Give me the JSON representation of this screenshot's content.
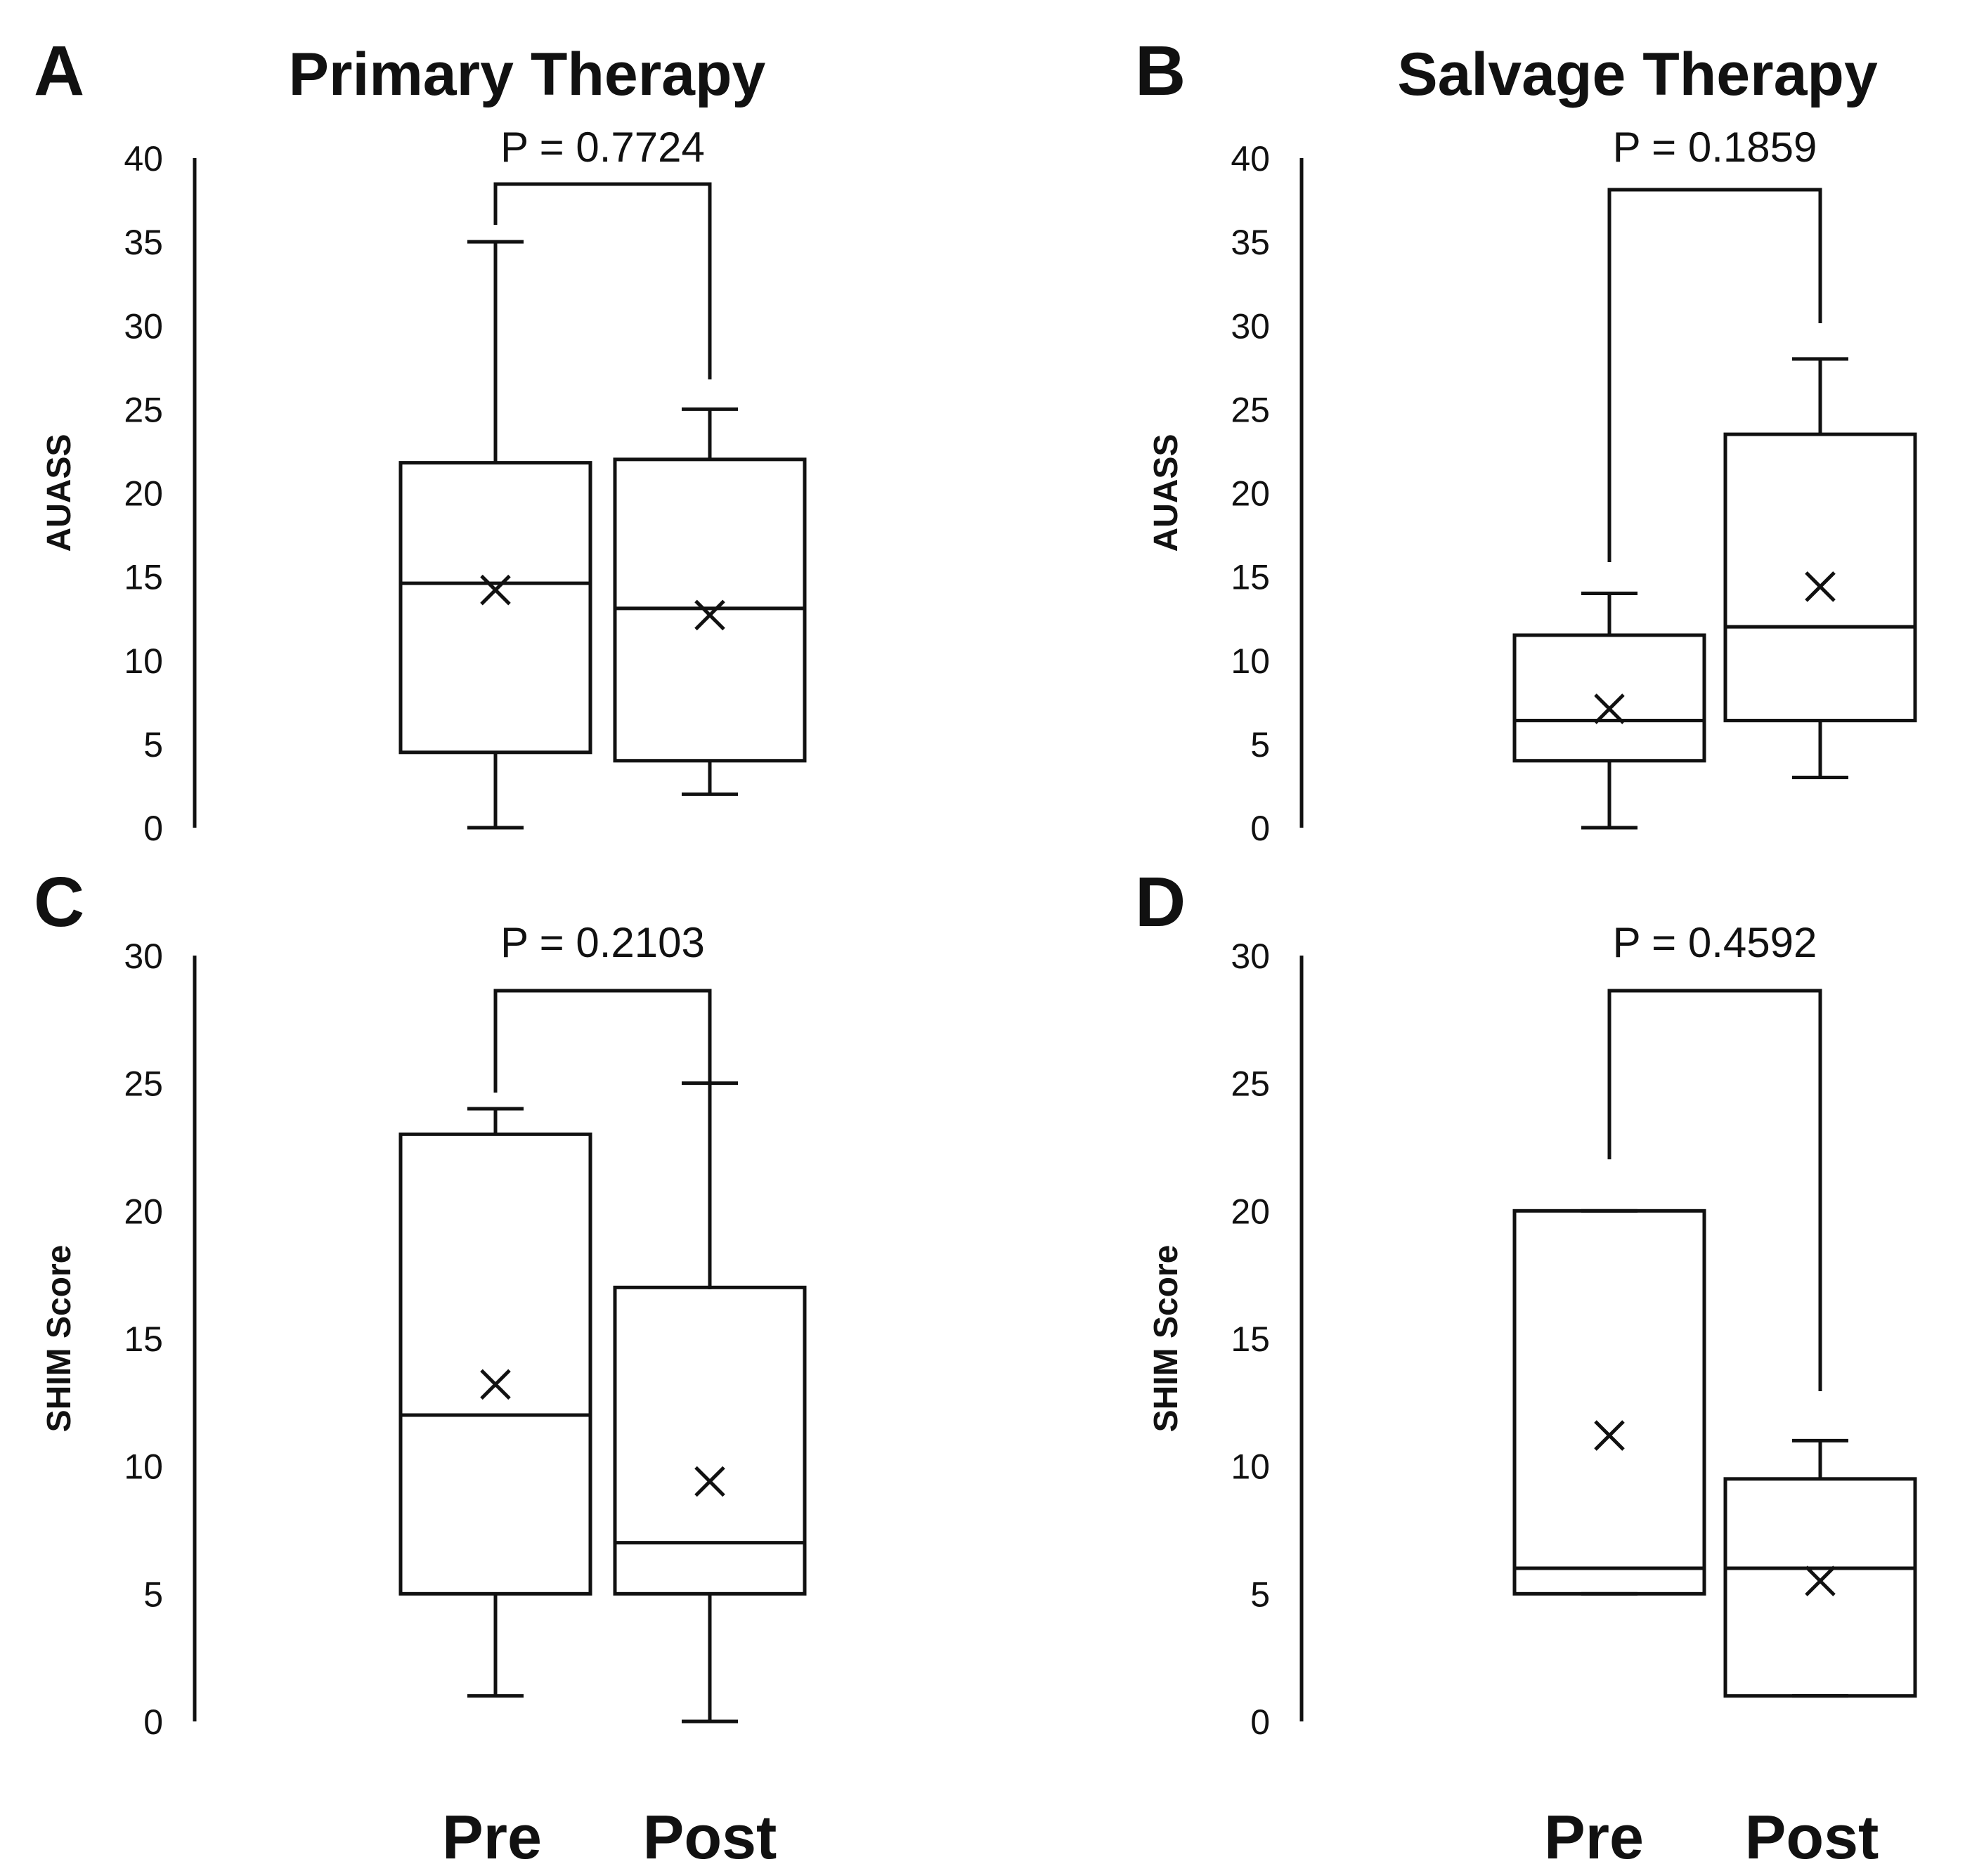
{
  "column_titles": [
    "Primary Therapy",
    "Salvage Therapy"
  ],
  "categories": [
    "Pre",
    "Post"
  ],
  "chart_data": [
    {
      "type": "box",
      "panel": "A",
      "title": "Primary Therapy",
      "ylabel": "AUASS",
      "ylim": [
        0,
        40
      ],
      "yticks": [
        0,
        5,
        10,
        15,
        20,
        25,
        30,
        35,
        40
      ],
      "categories": [
        "Pre",
        "Post"
      ],
      "p_value_label": "P = 0.7724",
      "boxes": [
        {
          "category": "Pre",
          "whisker_low": 0,
          "q1": 4.5,
          "median": 14.6,
          "q3": 21.8,
          "whisker_high": 35,
          "mean": 14.2
        },
        {
          "category": "Post",
          "whisker_low": 2,
          "q1": 4.0,
          "median": 13.1,
          "q3": 22.0,
          "whisker_high": 25,
          "mean": 12.7
        }
      ]
    },
    {
      "type": "box",
      "panel": "B",
      "title": "Salvage Therapy",
      "ylabel": "AUASS",
      "ylim": [
        0,
        40
      ],
      "yticks": [
        0,
        5,
        10,
        15,
        20,
        25,
        30,
        35,
        40
      ],
      "categories": [
        "Pre",
        "Post"
      ],
      "p_value_label": "P = 0.1859",
      "boxes": [
        {
          "category": "Pre",
          "whisker_low": 0,
          "q1": 4.0,
          "median": 6.4,
          "q3": 11.5,
          "whisker_high": 14,
          "mean": 7.1
        },
        {
          "category": "Post",
          "whisker_low": 3,
          "q1": 6.4,
          "median": 12.0,
          "q3": 23.5,
          "whisker_high": 28,
          "mean": 14.4
        }
      ]
    },
    {
      "type": "box",
      "panel": "C",
      "title": "",
      "ylabel": "SHIM Score",
      "ylim": [
        0,
        30
      ],
      "yticks": [
        0,
        5,
        10,
        15,
        20,
        25,
        30
      ],
      "categories": [
        "Pre",
        "Post"
      ],
      "p_value_label": "P = 0.2103",
      "boxes": [
        {
          "category": "Pre",
          "whisker_low": 1,
          "q1": 5.0,
          "median": 12.0,
          "q3": 23.0,
          "whisker_high": 24,
          "mean": 13.2
        },
        {
          "category": "Post",
          "whisker_low": 0,
          "q1": 5.0,
          "median": 7.0,
          "q3": 17.0,
          "whisker_high": 25,
          "mean": 9.4
        }
      ]
    },
    {
      "type": "box",
      "panel": "D",
      "title": "",
      "ylabel": "SHIM Score",
      "ylim": [
        0,
        30
      ],
      "yticks": [
        0,
        5,
        10,
        15,
        20,
        25,
        30
      ],
      "categories": [
        "Pre",
        "Post"
      ],
      "p_value_label": "P = 0.4592",
      "boxes": [
        {
          "category": "Pre",
          "whisker_low": 5,
          "q1": 5.0,
          "median": 6.0,
          "q3": 20.0,
          "whisker_high": 20,
          "mean": 11.2
        },
        {
          "category": "Post",
          "whisker_low": 1,
          "q1": 1.0,
          "median": 6.0,
          "q3": 9.5,
          "whisker_high": 11,
          "mean": 5.5
        }
      ]
    }
  ]
}
